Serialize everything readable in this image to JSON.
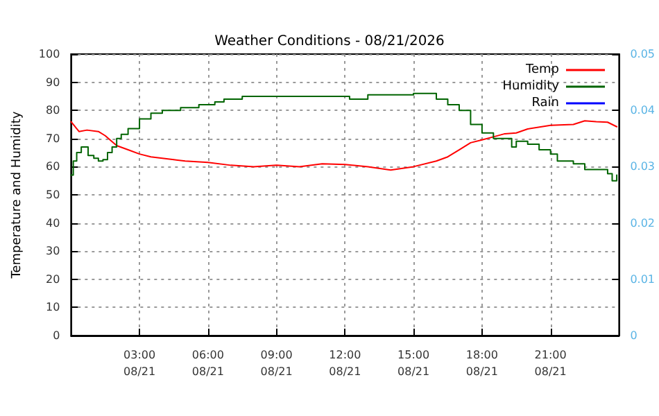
{
  "chart_data": {
    "type": "line",
    "title": "Weather Conditions - 08/21/2026",
    "ylabel": "Temperature and Humidity",
    "xlim": [
      "2026-08-21T00:00",
      "2026-08-22T00:00"
    ],
    "xticks": [
      {
        "value": "2026-08-21T03:00",
        "label": "03:00\n08/21"
      },
      {
        "value": "2026-08-21T06:00",
        "label": "06:00\n08/21"
      },
      {
        "value": "2026-08-21T09:00",
        "label": "09:00\n08/21"
      },
      {
        "value": "2026-08-21T12:00",
        "label": "12:00\n08/21"
      },
      {
        "value": "2026-08-21T15:00",
        "label": "15:00\n08/21"
      },
      {
        "value": "2026-08-21T18:00",
        "label": "18:00\n08/21"
      },
      {
        "value": "2026-08-21T21:00",
        "label": "21:00\n08/21"
      }
    ],
    "ylim": [
      0,
      100
    ],
    "yticks": [
      0,
      10,
      20,
      30,
      40,
      50,
      60,
      70,
      80,
      90,
      100
    ],
    "y2lim": [
      0,
      0.05
    ],
    "y2ticks": [
      0,
      0.01,
      0.02,
      0.03,
      0.04,
      0.05
    ],
    "grid": true,
    "legend": "top right",
    "line_style": "solid",
    "marker": "none",
    "series": [
      {
        "name": "Temp",
        "type": "line",
        "color": "#ff0000",
        "x": [
          "2026-08-21T00:00",
          "2026-08-21T00:21",
          "2026-08-21T00:42",
          "2026-08-21T01:12",
          "2026-08-21T01:30",
          "2026-08-21T02:00",
          "2026-08-21T02:30",
          "2026-08-21T03:00",
          "2026-08-21T03:30",
          "2026-08-21T04:00",
          "2026-08-21T04:30",
          "2026-08-21T05:00",
          "2026-08-21T06:00",
          "2026-08-21T07:00",
          "2026-08-21T08:00",
          "2026-08-21T09:00",
          "2026-08-21T10:00",
          "2026-08-21T11:00",
          "2026-08-21T12:00",
          "2026-08-21T13:00",
          "2026-08-21T14:00",
          "2026-08-21T15:00",
          "2026-08-21T16:00",
          "2026-08-21T16:30",
          "2026-08-21T17:00",
          "2026-08-21T17:30",
          "2026-08-21T18:00",
          "2026-08-21T18:30",
          "2026-08-21T19:00",
          "2026-08-21T19:30",
          "2026-08-21T20:00",
          "2026-08-21T21:00",
          "2026-08-21T22:00",
          "2026-08-21T22:30",
          "2026-08-21T23:00",
          "2026-08-21T23:30",
          "2026-08-21T23:54"
        ],
        "values": [
          76,
          72.5,
          73,
          72.5,
          71,
          67.5,
          66,
          64.5,
          63.5,
          63,
          62.5,
          62,
          61.5,
          60.5,
          60,
          60.5,
          60,
          61,
          60.8,
          60,
          58.8,
          60,
          62,
          63.5,
          66,
          68.5,
          69.5,
          70.6,
          71.7,
          72,
          73.4,
          74.7,
          75,
          76.3,
          76,
          75.8,
          74.2
        ]
      },
      {
        "name": "Humidity",
        "type": "step",
        "color": "#006400",
        "x": [
          "2026-08-21T00:00",
          "2026-08-21T00:06",
          "2026-08-21T00:15",
          "2026-08-21T00:27",
          "2026-08-21T00:36",
          "2026-08-21T00:45",
          "2026-08-21T01:00",
          "2026-08-21T01:12",
          "2026-08-21T01:24",
          "2026-08-21T01:36",
          "2026-08-21T01:48",
          "2026-08-21T02:00",
          "2026-08-21T02:12",
          "2026-08-21T02:30",
          "2026-08-21T03:00",
          "2026-08-21T03:30",
          "2026-08-21T04:00",
          "2026-08-21T04:36",
          "2026-08-21T04:48",
          "2026-08-21T05:30",
          "2026-08-21T05:36",
          "2026-08-21T06:18",
          "2026-08-21T06:42",
          "2026-08-21T07:30",
          "2026-08-21T12:00",
          "2026-08-21T12:12",
          "2026-08-21T13:00",
          "2026-08-21T15:00",
          "2026-08-21T16:00",
          "2026-08-21T16:30",
          "2026-08-21T17:00",
          "2026-08-21T17:30",
          "2026-08-21T18:00",
          "2026-08-21T18:30",
          "2026-08-21T19:00",
          "2026-08-21T19:18",
          "2026-08-21T19:30",
          "2026-08-21T20:00",
          "2026-08-21T20:30",
          "2026-08-21T21:00",
          "2026-08-21T21:18",
          "2026-08-21T22:00",
          "2026-08-21T22:30",
          "2026-08-21T23:00",
          "2026-08-21T23:30",
          "2026-08-21T23:42",
          "2026-08-21T23:54"
        ],
        "values": [
          57,
          62,
          65,
          67,
          67,
          64,
          63,
          62,
          62.5,
          65,
          67,
          70,
          71.5,
          73.5,
          77,
          79,
          80,
          80,
          81,
          81,
          82,
          83,
          84,
          85,
          85,
          84,
          85.5,
          86,
          84,
          82,
          80,
          75,
          72,
          70,
          70,
          67,
          69,
          68,
          66,
          64.5,
          62,
          61,
          59,
          59,
          57.5,
          55,
          57
        ]
      },
      {
        "name": "Rain",
        "type": "line",
        "axis": "y2",
        "color": "#0000ff"
      }
    ]
  }
}
